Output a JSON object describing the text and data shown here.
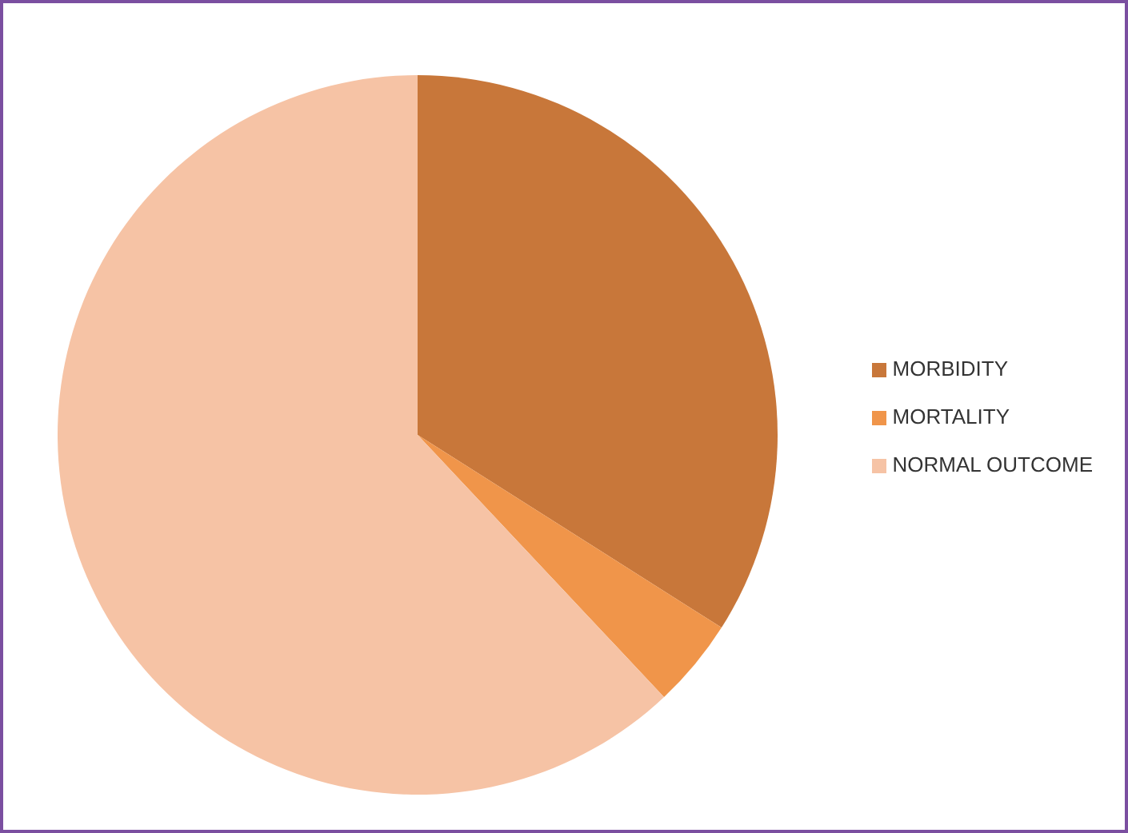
{
  "chart_data": {
    "type": "pie",
    "categories": [
      "MORBIDITY",
      "MORTALITY",
      "NORMAL OUTCOME"
    ],
    "values": [
      34,
      4,
      62
    ],
    "colors": [
      "#c8773a",
      "#f0954a",
      "#f6c3a5"
    ],
    "legend": "right"
  }
}
